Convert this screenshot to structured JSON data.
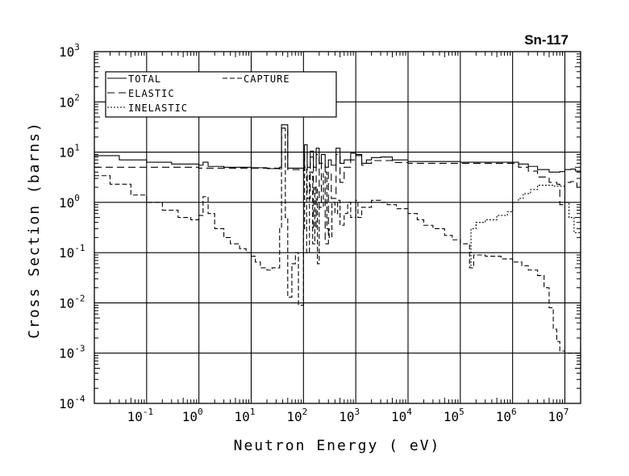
{
  "chart_data": {
    "type": "line",
    "title": "Sn-117",
    "xlabel": "Neutron Energy ( eV)",
    "ylabel": "Cross Section (barns)",
    "xscale": "log",
    "yscale": "log",
    "xlim": [
      0.01,
      20000000
    ],
    "ylim": [
      0.0001,
      1000
    ],
    "grid": true,
    "legend_position": "top-left",
    "x_ticks": [
      {
        "base": "10",
        "exp": "-1",
        "value": 0.1
      },
      {
        "base": "10",
        "exp": "0",
        "value": 1
      },
      {
        "base": "10",
        "exp": "1",
        "value": 10
      },
      {
        "base": "10",
        "exp": "2",
        "value": 100
      },
      {
        "base": "10",
        "exp": "3",
        "value": 1000
      },
      {
        "base": "10",
        "exp": "4",
        "value": 10000
      },
      {
        "base": "10",
        "exp": "5",
        "value": 100000
      },
      {
        "base": "10",
        "exp": "6",
        "value": 1000000
      },
      {
        "base": "10",
        "exp": "7",
        "value": 10000000
      }
    ],
    "y_ticks": [
      {
        "base": "10",
        "exp": "3",
        "value": 1000
      },
      {
        "base": "10",
        "exp": "2",
        "value": 100
      },
      {
        "base": "10",
        "exp": "1",
        "value": 10
      },
      {
        "base": "10",
        "exp": "0",
        "value": 1
      },
      {
        "base": "10",
        "exp": "-1",
        "value": 0.1
      },
      {
        "base": "10",
        "exp": "-2",
        "value": 0.01
      },
      {
        "base": "10",
        "exp": "-3",
        "value": 0.001
      },
      {
        "base": "10",
        "exp": "-4",
        "value": 0.0001
      }
    ],
    "series": [
      {
        "name": "TOTAL",
        "legend": "TOTAL",
        "style": "solid",
        "points": [
          [
            0.01,
            8.5
          ],
          [
            0.03,
            7
          ],
          [
            0.1,
            6.3
          ],
          [
            0.3,
            5.8
          ],
          [
            1.0,
            5.5
          ],
          [
            1.2,
            6.3
          ],
          [
            1.5,
            5.2
          ],
          [
            3,
            5.0
          ],
          [
            10,
            4.9
          ],
          [
            20,
            4.7
          ],
          [
            35,
            5.0
          ],
          [
            38,
            35
          ],
          [
            50,
            4.8
          ],
          [
            100,
            4.5
          ],
          [
            105,
            14
          ],
          [
            118,
            5
          ],
          [
            135,
            10.5
          ],
          [
            155,
            5
          ],
          [
            175,
            12
          ],
          [
            200,
            6
          ],
          [
            220,
            9
          ],
          [
            260,
            5
          ],
          [
            300,
            7
          ],
          [
            340,
            5.5
          ],
          [
            420,
            12
          ],
          [
            500,
            6
          ],
          [
            600,
            7
          ],
          [
            800,
            9.5
          ],
          [
            1000,
            9
          ],
          [
            1300,
            6
          ],
          [
            1600,
            7
          ],
          [
            2000,
            7.8
          ],
          [
            3000,
            8
          ],
          [
            5000,
            7
          ],
          [
            10000,
            6.5
          ],
          [
            100000,
            6.3
          ],
          [
            1000000,
            6.3
          ],
          [
            1300000,
            5.8
          ],
          [
            2000000,
            5.2
          ],
          [
            3000000,
            4.5
          ],
          [
            5000000,
            4
          ],
          [
            8000000,
            4.1
          ],
          [
            10000000,
            4.5
          ],
          [
            13000000,
            4.6
          ],
          [
            16000000,
            4.2
          ],
          [
            20000000,
            3.8
          ]
        ]
      },
      {
        "name": "ELASTIC",
        "legend": "ELASTIC",
        "style": "dash",
        "points": [
          [
            0.01,
            5
          ],
          [
            1,
            4.8
          ],
          [
            35,
            4.6
          ],
          [
            38,
            30
          ],
          [
            50,
            4.5
          ],
          [
            100,
            4.3
          ],
          [
            105,
            10
          ],
          [
            118,
            1.2
          ],
          [
            135,
            8
          ],
          [
            155,
            0.3
          ],
          [
            175,
            9
          ],
          [
            200,
            0.8
          ],
          [
            220,
            6
          ],
          [
            260,
            0.15
          ],
          [
            300,
            4
          ],
          [
            340,
            1.2
          ],
          [
            420,
            9
          ],
          [
            500,
            2.5
          ],
          [
            600,
            5
          ],
          [
            800,
            7
          ],
          [
            1000,
            8.5
          ],
          [
            1300,
            5.5
          ],
          [
            1600,
            6
          ],
          [
            2000,
            6.8
          ],
          [
            3000,
            6.8
          ],
          [
            5000,
            6.2
          ],
          [
            10000,
            6
          ],
          [
            1000000,
            6
          ],
          [
            1300000,
            5
          ],
          [
            2000000,
            4.2
          ],
          [
            3000000,
            3.2
          ],
          [
            5000000,
            2.5
          ],
          [
            7000000,
            2.3
          ],
          [
            8000000,
            0.9
          ],
          [
            10000000,
            2.5
          ],
          [
            13000000,
            2.6
          ],
          [
            17000000,
            2.0
          ],
          [
            20000000,
            1.8
          ]
        ]
      },
      {
        "name": "INELASTIC",
        "legend": "INELASTIC",
        "style": "dot",
        "points": [
          [
            150000,
            0.05
          ],
          [
            160000,
            0.3
          ],
          [
            200000,
            0.4
          ],
          [
            300000,
            0.45
          ],
          [
            500000,
            0.55
          ],
          [
            800000,
            0.65
          ],
          [
            1000000,
            1.0
          ],
          [
            1300000,
            1.2
          ],
          [
            1600000,
            1.5
          ],
          [
            2200000,
            1.8
          ],
          [
            3000000,
            2.2
          ],
          [
            6000000,
            2.1
          ],
          [
            10000000,
            1.0
          ],
          [
            12000000,
            0.5
          ],
          [
            15000000,
            0.25
          ],
          [
            20000000,
            0.1
          ]
        ]
      },
      {
        "name": "CAPTURE",
        "legend": "CAPTURE",
        "style": "dash-short",
        "points": [
          [
            0.01,
            3.4
          ],
          [
            0.02,
            2.3
          ],
          [
            0.05,
            1.4
          ],
          [
            0.1,
            1.0
          ],
          [
            0.2,
            0.7
          ],
          [
            0.4,
            0.5
          ],
          [
            0.7,
            0.45
          ],
          [
            1.0,
            0.55
          ],
          [
            1.2,
            1.3
          ],
          [
            1.5,
            0.6
          ],
          [
            2,
            0.3
          ],
          [
            3,
            0.2
          ],
          [
            4,
            0.15
          ],
          [
            6,
            0.12
          ],
          [
            8,
            0.1
          ],
          [
            10,
            0.085
          ],
          [
            12,
            0.065
          ],
          [
            15,
            0.05
          ],
          [
            20,
            0.045
          ],
          [
            25,
            0.05
          ],
          [
            35,
            0.3
          ],
          [
            38,
            30
          ],
          [
            45,
            0.5
          ],
          [
            50,
            0.013
          ],
          [
            60,
            0.06
          ],
          [
            70,
            0.1
          ],
          [
            80,
            0.009
          ],
          [
            100,
            0.3
          ],
          [
            105,
            5
          ],
          [
            115,
            0.1
          ],
          [
            130,
            4
          ],
          [
            150,
            0.15
          ],
          [
            165,
            2
          ],
          [
            185,
            0.06
          ],
          [
            200,
            0.8
          ],
          [
            240,
            4
          ],
          [
            280,
            0.3
          ],
          [
            310,
            0.2
          ],
          [
            350,
            1.0
          ],
          [
            400,
            0.6
          ],
          [
            450,
            1.1
          ],
          [
            500,
            0.35
          ],
          [
            600,
            0.6
          ],
          [
            700,
            1.0
          ],
          [
            800,
            0.5
          ],
          [
            1000,
            1.1
          ],
          [
            1100,
            0.5
          ],
          [
            1300,
            0.8
          ],
          [
            2000,
            1.1
          ],
          [
            3000,
            1.0
          ],
          [
            4000,
            0.9
          ],
          [
            6000,
            0.75
          ],
          [
            10000,
            0.6
          ],
          [
            15000,
            0.45
          ],
          [
            20000,
            0.35
          ],
          [
            30000,
            0.3
          ],
          [
            50000,
            0.22
          ],
          [
            70000,
            0.18
          ],
          [
            100000,
            0.15
          ],
          [
            150000,
            0.05
          ],
          [
            180000,
            0.09
          ],
          [
            300000,
            0.085
          ],
          [
            600000,
            0.075
          ],
          [
            1000000,
            0.065
          ],
          [
            1500000,
            0.055
          ],
          [
            2000000,
            0.045
          ],
          [
            3000000,
            0.035
          ],
          [
            4000000,
            0.02
          ],
          [
            5000000,
            0.008
          ],
          [
            6000000,
            0.003
          ],
          [
            7000000,
            0.0017
          ],
          [
            8000000,
            0.0011
          ],
          [
            10000000,
            0.001
          ],
          [
            13000000,
            0.001
          ],
          [
            20000000,
            0.0013
          ]
        ]
      }
    ]
  }
}
